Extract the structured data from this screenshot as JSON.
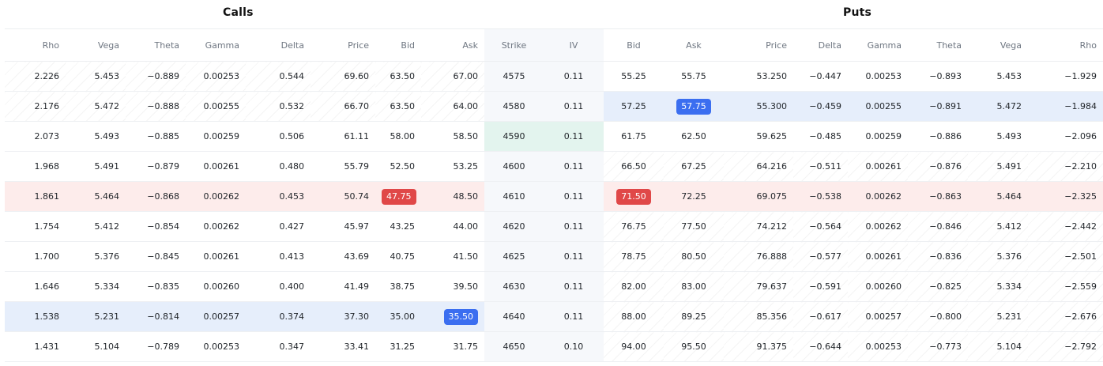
{
  "sections": {
    "calls": "Calls",
    "puts": "Puts"
  },
  "columns": [
    "Rho",
    "Vega",
    "Theta",
    "Gamma",
    "Delta",
    "Price",
    "Bid",
    "Ask",
    "Strike",
    "IV",
    "Bid",
    "Ask",
    "Price",
    "Delta",
    "Gamma",
    "Theta",
    "Vega",
    "Rho"
  ],
  "colors": {
    "pill_blue": "#3b6ef0",
    "pill_red": "#e04848",
    "row_blue": "#e6eefb",
    "row_red": "#fdeceb",
    "atm_green": "#e3f4ee"
  },
  "rows": [
    {
      "cells": [
        "2.226",
        "5.453",
        "−0.889",
        "0.00253",
        "0.544",
        "69.60",
        "63.50",
        "67.00",
        "4575",
        "0.11",
        "55.25",
        "55.75",
        "53.250",
        "−0.447",
        "0.00253",
        "−0.893",
        "5.453",
        "−1.929"
      ]
    },
    {
      "cells": [
        "2.176",
        "5.472",
        "−0.888",
        "0.00255",
        "0.532",
        "66.70",
        "63.50",
        "64.00",
        "4580",
        "0.11",
        "57.25",
        "57.75",
        "55.300",
        "−0.459",
        "0.00255",
        "−0.891",
        "5.472",
        "−1.984"
      ]
    },
    {
      "cells": [
        "2.073",
        "5.493",
        "−0.885",
        "0.00259",
        "0.506",
        "61.11",
        "58.00",
        "58.50",
        "4590",
        "0.11",
        "61.75",
        "62.50",
        "59.625",
        "−0.485",
        "0.00259",
        "−0.886",
        "5.493",
        "−2.096"
      ]
    },
    {
      "cells": [
        "1.968",
        "5.491",
        "−0.879",
        "0.00261",
        "0.480",
        "55.79",
        "52.50",
        "53.25",
        "4600",
        "0.11",
        "66.50",
        "67.25",
        "64.216",
        "−0.511",
        "0.00261",
        "−0.876",
        "5.491",
        "−2.210"
      ]
    },
    {
      "cells": [
        "1.861",
        "5.464",
        "−0.868",
        "0.00262",
        "0.453",
        "50.74",
        "47.75",
        "48.50",
        "4610",
        "0.11",
        "71.50",
        "72.25",
        "69.075",
        "−0.538",
        "0.00262",
        "−0.863",
        "5.464",
        "−2.325"
      ]
    },
    {
      "cells": [
        "1.754",
        "5.412",
        "−0.854",
        "0.00262",
        "0.427",
        "45.97",
        "43.25",
        "44.00",
        "4620",
        "0.11",
        "76.75",
        "77.50",
        "74.212",
        "−0.564",
        "0.00262",
        "−0.846",
        "5.412",
        "−2.442"
      ]
    },
    {
      "cells": [
        "1.700",
        "5.376",
        "−0.845",
        "0.00261",
        "0.413",
        "43.69",
        "40.75",
        "41.50",
        "4625",
        "0.11",
        "78.75",
        "80.50",
        "76.888",
        "−0.577",
        "0.00261",
        "−0.836",
        "5.376",
        "−2.501"
      ]
    },
    {
      "cells": [
        "1.646",
        "5.334",
        "−0.835",
        "0.00260",
        "0.400",
        "41.49",
        "38.75",
        "39.50",
        "4630",
        "0.11",
        "82.00",
        "83.00",
        "79.637",
        "−0.591",
        "0.00260",
        "−0.825",
        "5.334",
        "−2.559"
      ]
    },
    {
      "cells": [
        "1.538",
        "5.231",
        "−0.814",
        "0.00257",
        "0.374",
        "37.30",
        "35.00",
        "35.50",
        "4640",
        "0.11",
        "88.00",
        "89.25",
        "85.356",
        "−0.617",
        "0.00257",
        "−0.800",
        "5.231",
        "−2.676"
      ]
    },
    {
      "cells": [
        "1.431",
        "5.104",
        "−0.789",
        "0.00253",
        "0.347",
        "33.41",
        "31.25",
        "31.75",
        "4650",
        "0.10",
        "94.00",
        "95.50",
        "91.375",
        "−0.644",
        "0.00253",
        "−0.773",
        "5.104",
        "−2.792"
      ]
    }
  ]
}
